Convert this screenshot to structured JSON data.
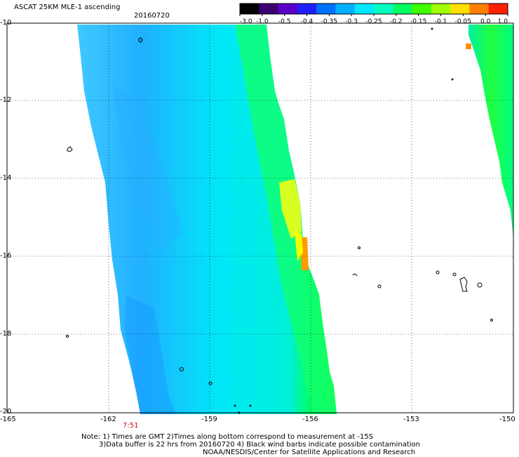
{
  "title": "ASCAT 25KM MLE-1 ascending",
  "date": "20160720",
  "colorbar": {
    "ticks": [
      "-3.0",
      "-1.0",
      "-0.5",
      "-0.4",
      "-0.35",
      "-0.3",
      "-0.25",
      "-0.2",
      "-0.15",
      "-0.1",
      "-0.05",
      "0.0",
      "1.0"
    ],
    "colors": [
      "#000000",
      "#3a0070",
      "#5a00c8",
      "#2020ff",
      "#0070ff",
      "#00b0ff",
      "#00e8ff",
      "#00ffc0",
      "#00ff60",
      "#40ff00",
      "#a0ff00",
      "#ffe000",
      "#ff8000",
      "#ff2000"
    ]
  },
  "axes": {
    "lon_ticks": [
      "-165",
      "-162",
      "-159",
      "-156",
      "-153",
      "-150"
    ],
    "lat_ticks": [
      "-10",
      "-12",
      "-14",
      "-16",
      "-18",
      "-20"
    ],
    "lon_range": [
      -165,
      -150
    ],
    "lat_range": [
      -20,
      -10
    ]
  },
  "time_label": "7:51",
  "notes": {
    "line1": "Note: 1) Times are GMT 2)Times along bottom correspond to measurement at -15S",
    "line2": "3)Data buffer is 22 hrs from 20160720 4) Black wind barbs indicate possible contamination",
    "line3": "NOAA/NESDIS/Center for Satellite Applications and Research"
  }
}
